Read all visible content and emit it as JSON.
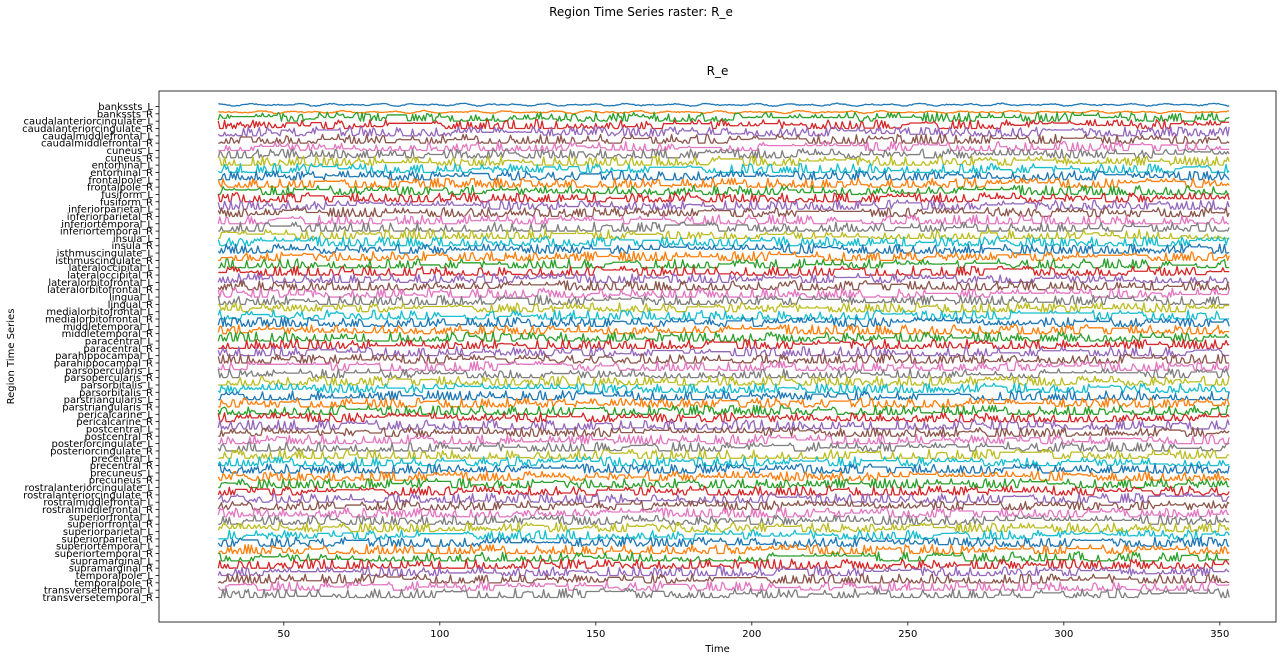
{
  "figure": {
    "suptitle": "Region Time Series raster: R_e"
  },
  "chart_data": {
    "type": "line",
    "title": "R_e",
    "xlabel": "Time",
    "ylabel": "Region Time Series",
    "xlim": [
      10,
      368
    ],
    "x_range": [
      29,
      353
    ],
    "xticks": [
      50,
      100,
      150,
      200,
      250,
      300,
      350
    ],
    "grid": false,
    "legend": "none",
    "colors": [
      "#1f77b4",
      "#ff7f0e",
      "#2ca02c",
      "#d62728",
      "#9467bd",
      "#8c564b",
      "#e377c2",
      "#7f7f7f",
      "#bcbd22",
      "#17becf"
    ],
    "regions": [
      "bankssts_L",
      "bankssts_R",
      "caudalanteriorcingulate_L",
      "caudalanteriorcingulate_R",
      "caudalmiddlefrontal_L",
      "caudalmiddlefrontal_R",
      "cuneus_L",
      "cuneus_R",
      "entorhinal_L",
      "entorhinal_R",
      "frontalpole_L",
      "frontalpole_R",
      "fusiform_L",
      "fusiform_R",
      "inferiorparietal_L",
      "inferiorparietal_R",
      "inferiortemporal_L",
      "inferiortemporal_R",
      "insula_L",
      "insula_R",
      "isthmuscingulate_L",
      "isthmuscingulate_R",
      "lateraloccipital_L",
      "lateraloccipital_R",
      "lateralorbitofrontal_L",
      "lateralorbitofrontal_R",
      "lingual_L",
      "lingual_R",
      "medialorbitofrontal_L",
      "medialorbitofrontal_R",
      "middletemporal_L",
      "middletemporal_R",
      "paracentral_L",
      "paracentral_R",
      "parahippocampal_L",
      "parahippocampal_R",
      "parsopercularis_L",
      "parsopercularis_R",
      "parsorbitalis_L",
      "parsorbitalis_R",
      "parstriangularis_L",
      "parstriangularis_R",
      "pericalcarine_L",
      "pericalcarine_R",
      "postcentral_L",
      "postcentral_R",
      "posteriorcingulate_L",
      "posteriorcingulate_R",
      "precentral_L",
      "precentral_R",
      "precuneus_L",
      "precuneus_R",
      "rostralanteriorcingulate_L",
      "rostralanteriorcingulate_R",
      "rostralmiddlefrontal_L",
      "rostralmiddlefrontal_R",
      "superiorfrontal_L",
      "superiorfrontal_R",
      "superiorparietal_L",
      "superiorparietal_R",
      "superiortemporal_L",
      "superiortemporal_R",
      "supramarginal_L",
      "supramarginal_R",
      "temporalpole_L",
      "temporalpole_R",
      "transversetemporal_L",
      "transversetemporal_R"
    ]
  }
}
